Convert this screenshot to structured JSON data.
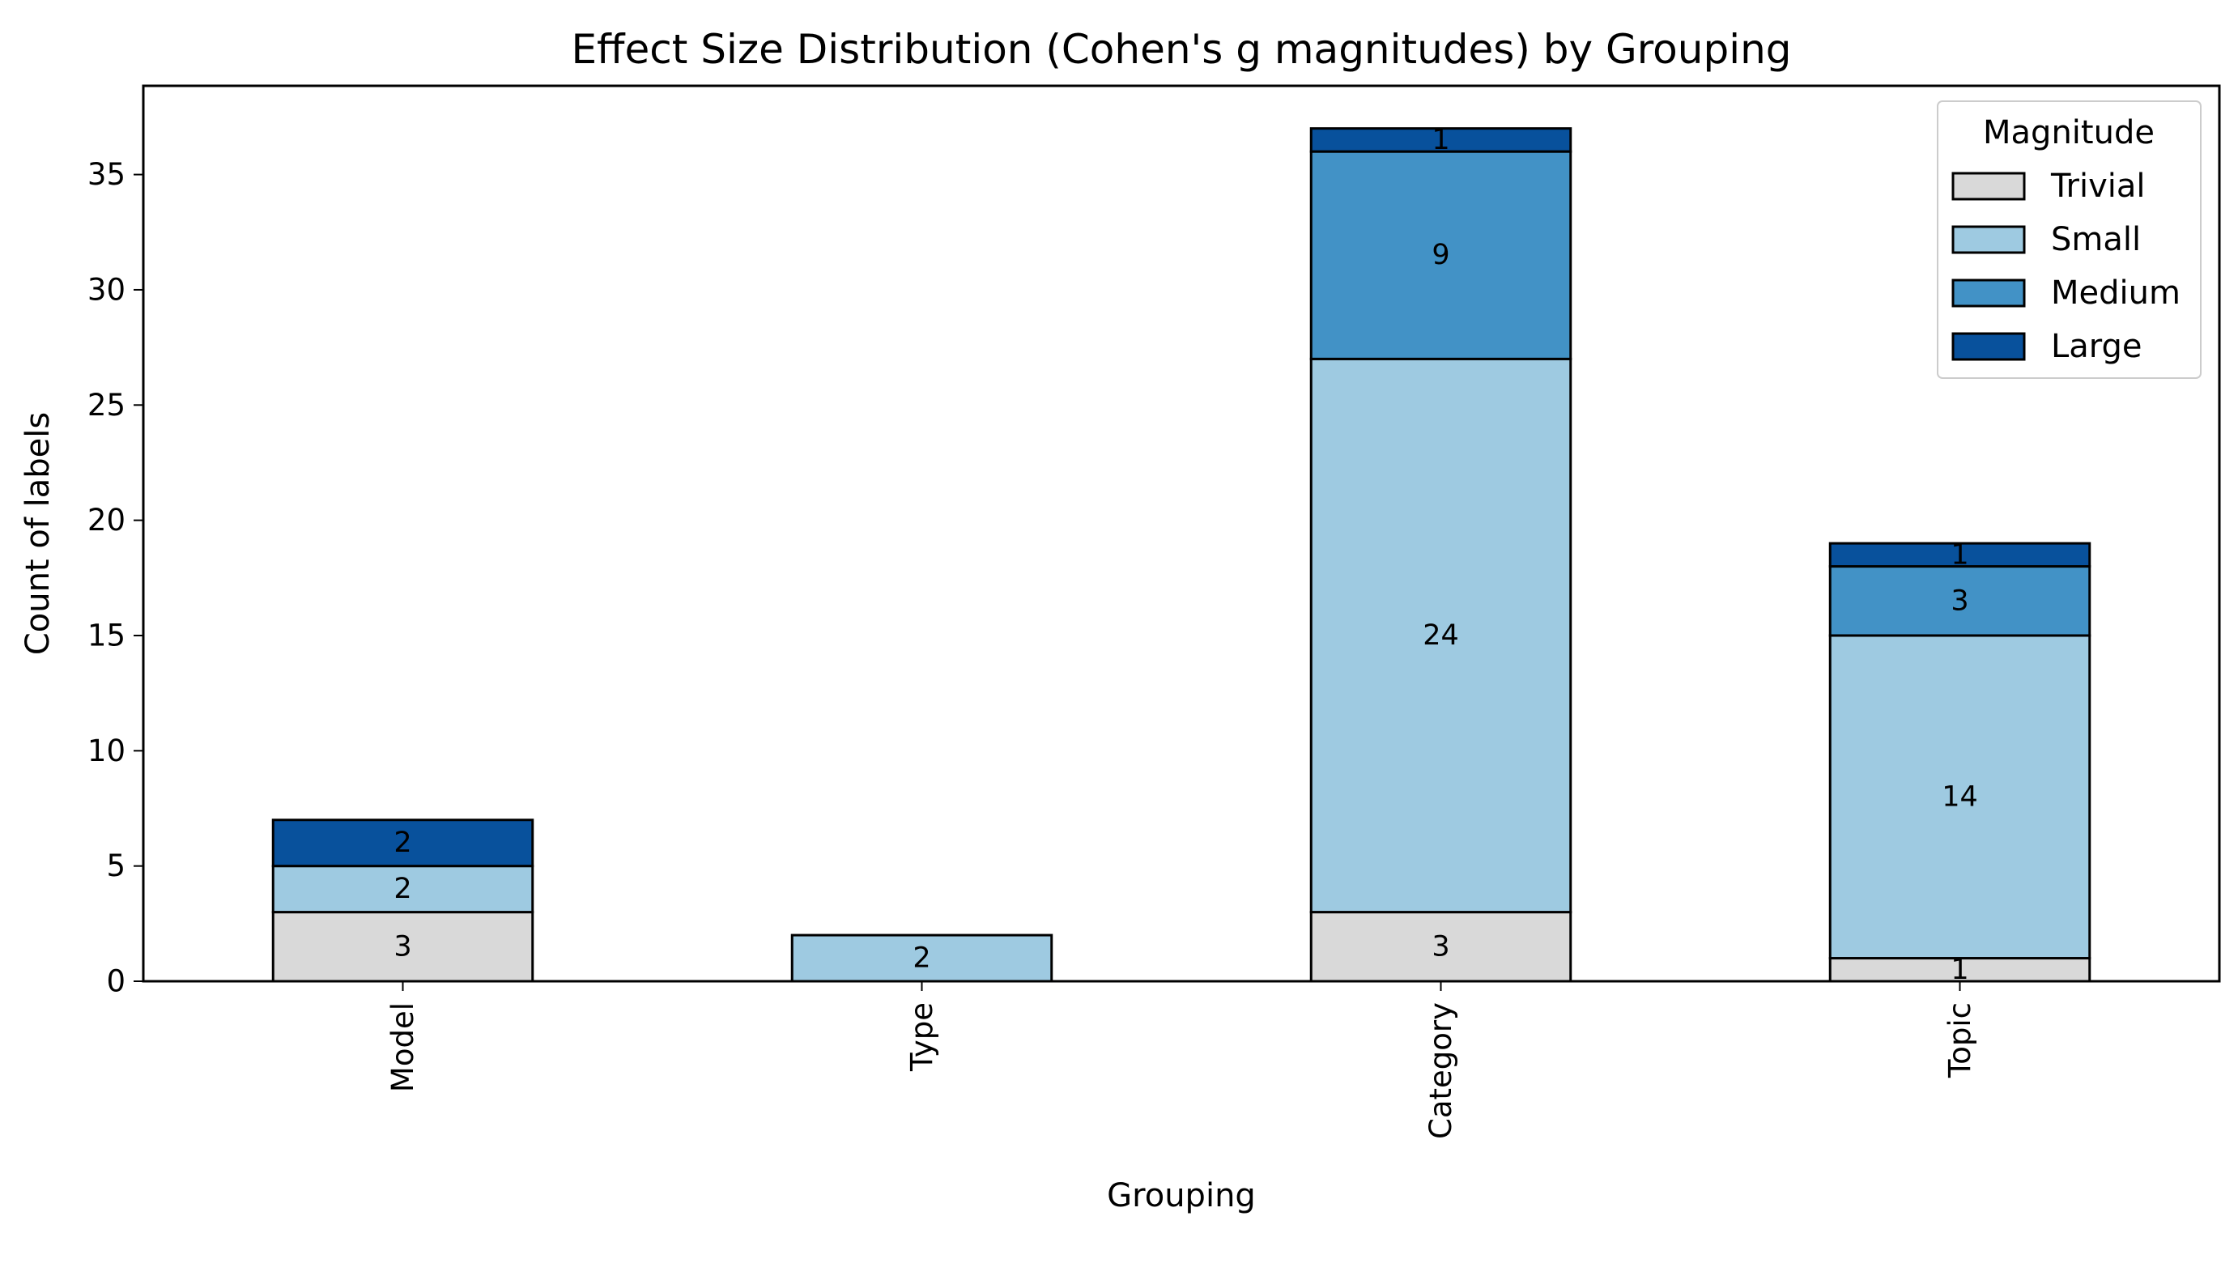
{
  "chart_data": {
    "type": "bar",
    "stacked": true,
    "title": "Effect Size Distribution (Cohen's g magnitudes) by Grouping",
    "xlabel": "Grouping",
    "ylabel": "Count of labels",
    "categories": [
      "Model",
      "Type",
      "Category",
      "Topic"
    ],
    "series": [
      {
        "name": "Trivial",
        "values": [
          3,
          0,
          3,
          1
        ],
        "color": "#d9d9d9"
      },
      {
        "name": "Small",
        "values": [
          2,
          2,
          24,
          14
        ],
        "color": "#9ecae1"
      },
      {
        "name": "Medium",
        "values": [
          0,
          0,
          9,
          3
        ],
        "color": "#4292c6"
      },
      {
        "name": "Large",
        "values": [
          2,
          0,
          1,
          1
        ],
        "color": "#08519c"
      }
    ],
    "ylim": [
      0,
      38.85
    ],
    "yticks": [
      0,
      5,
      10,
      15,
      20,
      25,
      30,
      35
    ],
    "legend": {
      "title": "Magnitude",
      "placement": "top-right"
    },
    "grid": false
  }
}
